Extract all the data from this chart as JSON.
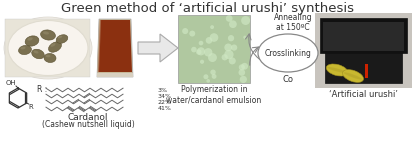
{
  "title": "Green method of ‘artificial urushi’ synthesis",
  "title_fontsize": 9.5,
  "bg_color": "#ffffff",
  "label_cardanol": "Cardanol",
  "label_cashew": "(Cashew nutshell liquid)",
  "label_polymerization": "Polymerization in\nwater/cardanol emulsion",
  "label_annealing": "Annealing\nat 150ºC",
  "label_crosslinking": "Crosslinking",
  "label_co": "Co",
  "label_urushi": "‘Artificial urushi’",
  "label_r": "R :",
  "label_oh": "OH",
  "label_r2": "R",
  "pct_labels": [
    "3%",
    "34%",
    "22%",
    "41%"
  ],
  "text_color": "#333333",
  "chain_color": "#666666",
  "nuts_bg": "#f0ece0",
  "nuts_color": "#7a6535",
  "cup_liquid": "#8b3010",
  "cup_glass_top": "#c8c0b0",
  "green_bg": "#b0c8a0",
  "green_dot": "#ccdec0",
  "arrow_fill": "#e8e8e8",
  "arrow_edge": "#aaaaaa",
  "ellipse_edge": "#888888",
  "box_dark": "#1a1a1a",
  "box_mid": "#2a2a2a",
  "leaf_color": "#c8b830",
  "red_accent": "#cc2200",
  "ring_color": "#333333"
}
